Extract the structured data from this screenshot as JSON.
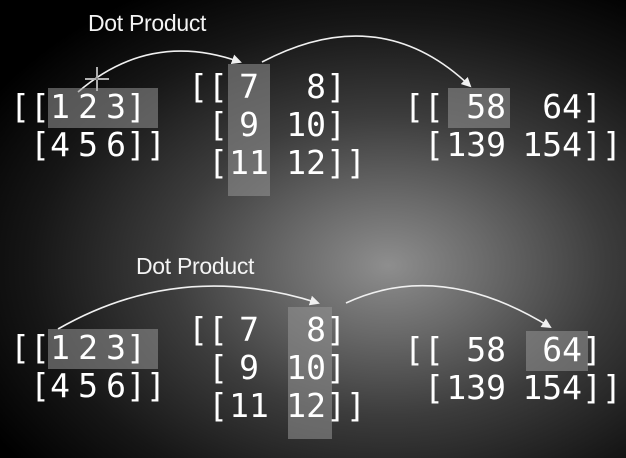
{
  "top_panel": {
    "title": "Dot Product",
    "matrix_a": {
      "open": "[[",
      "rows": [
        [
          "1",
          "2",
          "3"
        ],
        [
          "4",
          "5",
          "6"
        ]
      ],
      "row_close": "]",
      "close": "]]",
      "row2_open": "["
    },
    "matrix_b": {
      "rows": [
        [
          "7",
          "8"
        ],
        [
          "9",
          "10"
        ],
        [
          "11",
          "12"
        ]
      ],
      "open": "[[",
      "row_open": "[",
      "row_close": "]",
      "close": "]]"
    },
    "matrix_c": {
      "rows": [
        [
          "58",
          "64"
        ],
        [
          "139",
          "154"
        ]
      ],
      "open": "[[",
      "row_open": "[",
      "row_close": "]",
      "close": "]]"
    },
    "highlight": {
      "a_row": 1,
      "b_col": 1,
      "c_cell": [
        1,
        1
      ]
    }
  },
  "bottom_panel": {
    "title": "Dot Product",
    "matrix_a": {
      "rows": [
        [
          "1",
          "2",
          "3"
        ],
        [
          "4",
          "5",
          "6"
        ]
      ],
      "open": "[[",
      "row_open": "[",
      "row_close": "]",
      "close": "]]"
    },
    "matrix_b": {
      "rows": [
        [
          "7",
          "8"
        ],
        [
          "9",
          "10"
        ],
        [
          "11",
          "12"
        ]
      ],
      "open": "[[",
      "row_open": "[",
      "row_close": "]",
      "close": "]]"
    },
    "matrix_c": {
      "rows": [
        [
          "58",
          "64"
        ],
        [
          "139",
          "154"
        ]
      ],
      "open": "[[",
      "row_open": "[",
      "row_close": "]",
      "close": "]]"
    },
    "highlight": {
      "a_row": 1,
      "b_col": 2,
      "c_cell": [
        1,
        2
      ]
    }
  },
  "colors": {
    "text": "#ffffff",
    "arrow": "#f0f0f0",
    "highlight": "#969696"
  },
  "icons": {
    "cursor": "crosshair-cursor-icon"
  }
}
